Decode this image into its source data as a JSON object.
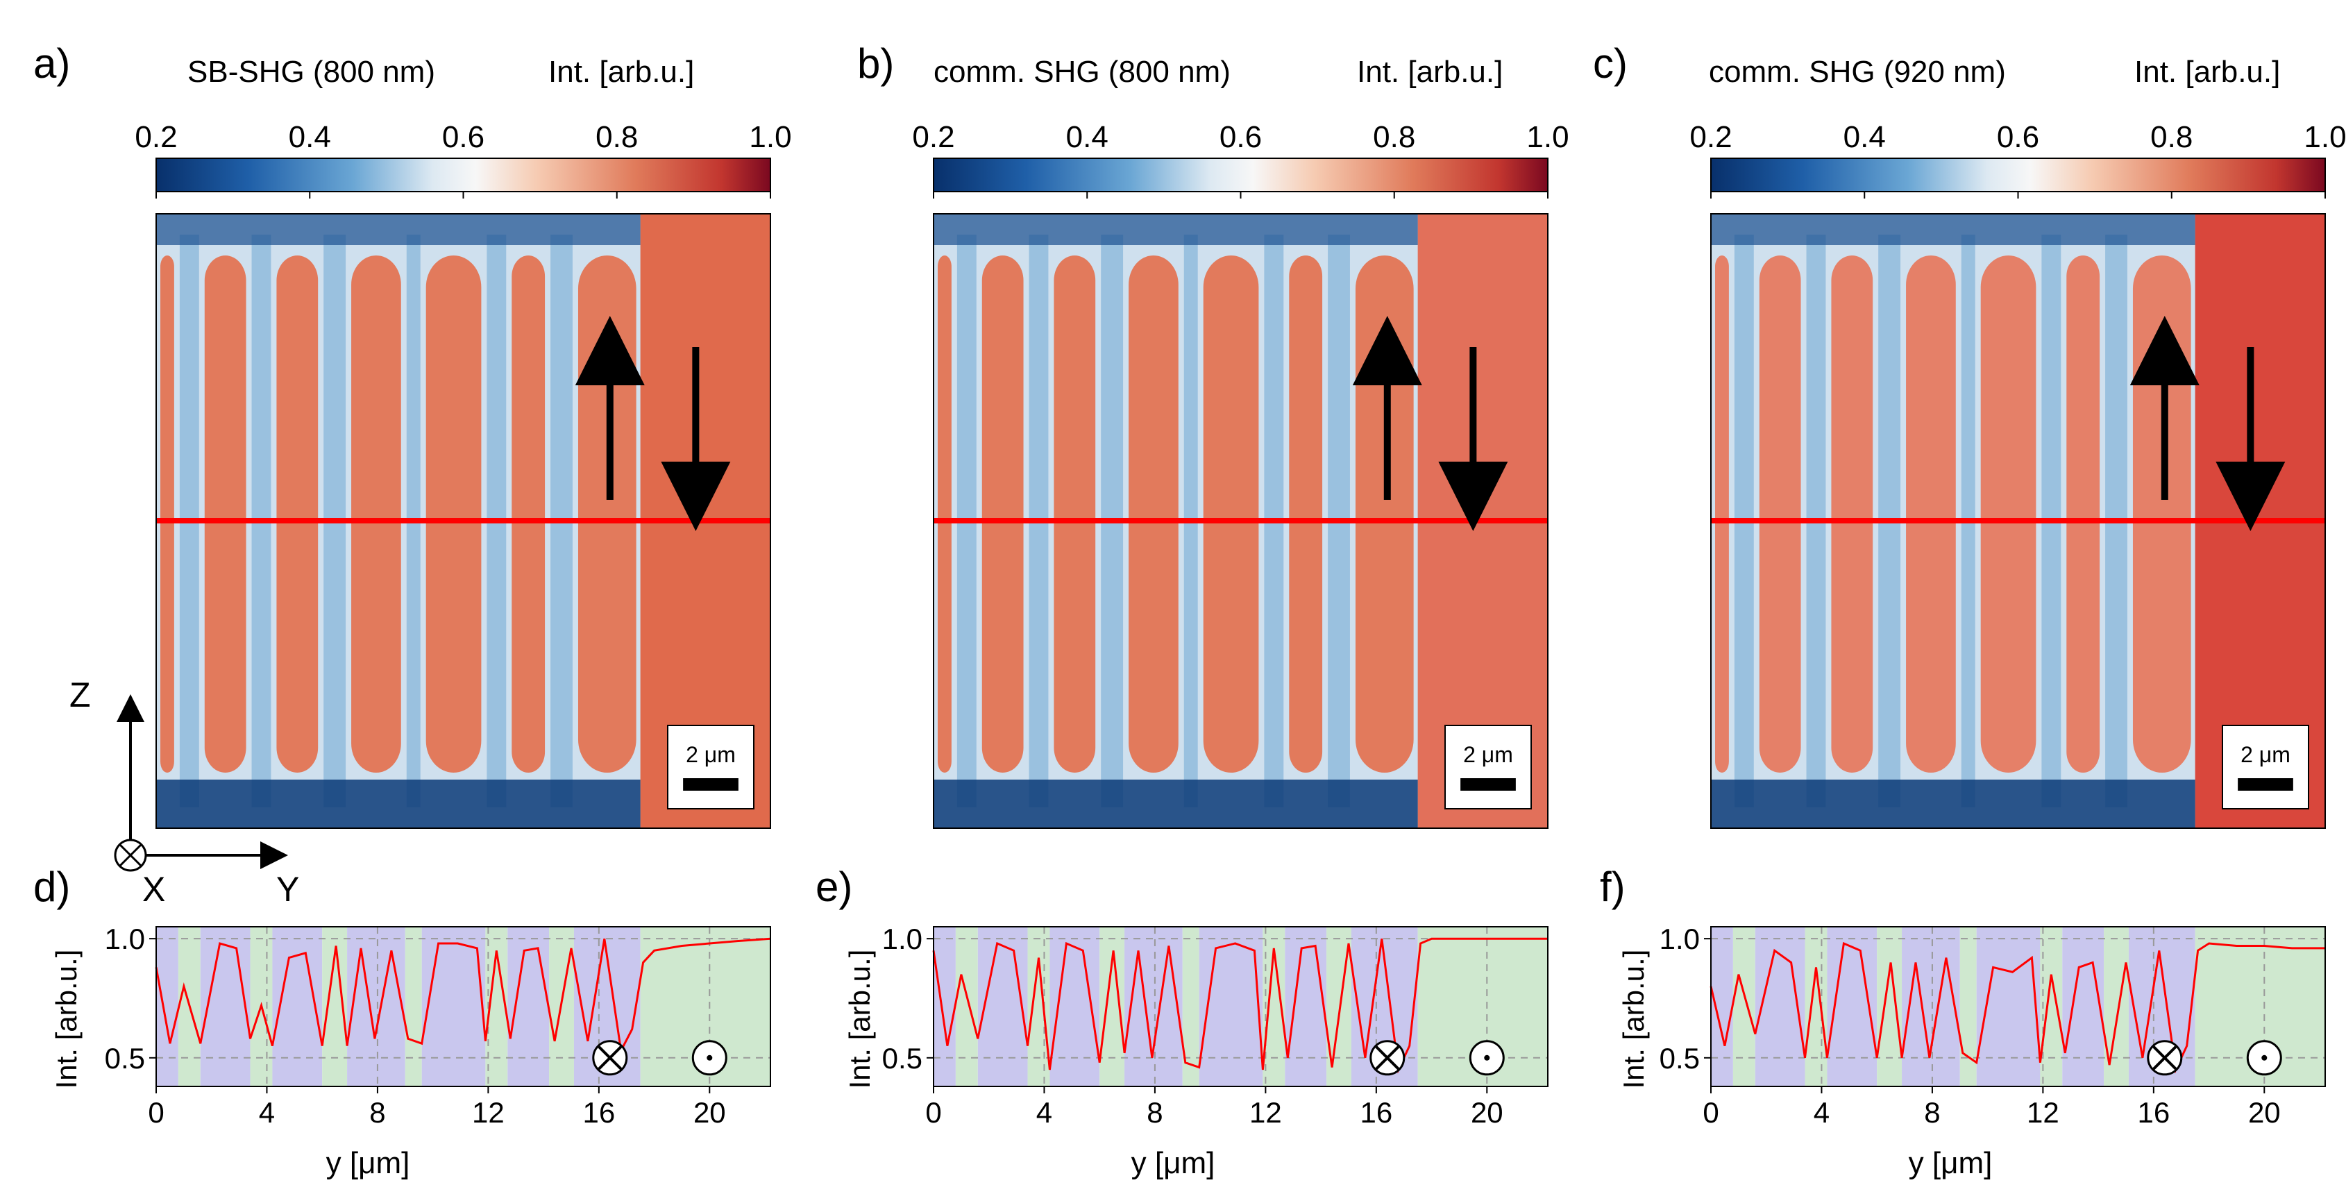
{
  "panels": [
    {
      "letter": "a)",
      "title": "SB-SHG (800 nm)",
      "cbar_label": "Int. [arb.u.]",
      "scalebar": "2 μm"
    },
    {
      "letter": "b)",
      "title": "comm. SHG (800 nm)",
      "cbar_label": "Int. [arb.u.]",
      "scalebar": "2 μm"
    },
    {
      "letter": "c)",
      "title": "comm. SHG (920 nm)",
      "cbar_label": "Int. [arb.u.]",
      "scalebar": "2 μm"
    }
  ],
  "profiles": [
    {
      "letter": "d)",
      "xlabel": "y [μm]",
      "ylabel": "Int. [arb.u.]"
    },
    {
      "letter": "e)",
      "xlabel": "y [μm]",
      "ylabel": "Int. [arb.u.]"
    },
    {
      "letter": "f)",
      "xlabel": "y [μm]",
      "ylabel": "Int. [arb.u.]"
    }
  ],
  "colorbar": {
    "ticks": [
      "0.2",
      "0.4",
      "0.6",
      "0.8",
      "1.0"
    ],
    "range": [
      0.2,
      1.0
    ]
  },
  "axes_indicator": {
    "z": "Z",
    "x": "X",
    "y": "Y"
  },
  "colors": {
    "cold": "#08306b",
    "neutral": "#f7f7f7",
    "warm": "#b2182b",
    "line": "#ff0000",
    "band_down": "#c9c7ee",
    "band_up": "#cfe8cf"
  },
  "chart_data": {
    "type": "line",
    "xlabel": "y [μm]",
    "ylabel": "Int. [arb.u.]",
    "xlim": [
      0,
      22.2
    ],
    "ylim": [
      0.38,
      1.05
    ],
    "xticks": [
      "0",
      "4",
      "8",
      "12",
      "16",
      "20"
    ],
    "yticks": [
      "0.5",
      "1.0"
    ],
    "grid": true,
    "domain_bands": [
      {
        "from": 0.0,
        "to": 0.8,
        "pol": "down"
      },
      {
        "from": 0.8,
        "to": 1.6,
        "pol": "up"
      },
      {
        "from": 1.6,
        "to": 3.4,
        "pol": "down"
      },
      {
        "from": 3.4,
        "to": 4.2,
        "pol": "up"
      },
      {
        "from": 4.2,
        "to": 6.0,
        "pol": "down"
      },
      {
        "from": 6.0,
        "to": 6.9,
        "pol": "up"
      },
      {
        "from": 6.9,
        "to": 9.0,
        "pol": "down"
      },
      {
        "from": 9.0,
        "to": 9.6,
        "pol": "up"
      },
      {
        "from": 9.6,
        "to": 11.9,
        "pol": "down"
      },
      {
        "from": 11.9,
        "to": 12.7,
        "pol": "up"
      },
      {
        "from": 12.7,
        "to": 14.2,
        "pol": "down"
      },
      {
        "from": 14.2,
        "to": 15.1,
        "pol": "up"
      },
      {
        "from": 15.1,
        "to": 17.5,
        "pol": "down"
      },
      {
        "from": 17.5,
        "to": 22.2,
        "pol": "up"
      }
    ],
    "series": [
      {
        "y": [
          0.0,
          0.5,
          1.0,
          1.6,
          2.3,
          2.9,
          3.4,
          3.8,
          4.2,
          4.8,
          5.4,
          6.0,
          6.5,
          6.9,
          7.4,
          7.9,
          8.5,
          9.1,
          9.6,
          10.2,
          10.9,
          11.6,
          11.9,
          12.3,
          12.8,
          13.3,
          13.8,
          14.4,
          15.0,
          15.6,
          16.2,
          16.8,
          17.2,
          17.6,
          18.0,
          19.0,
          20.0,
          21.0,
          22.2
        ],
        "intensity": [
          0.88,
          0.56,
          0.8,
          0.56,
          0.98,
          0.96,
          0.58,
          0.72,
          0.55,
          0.92,
          0.94,
          0.55,
          0.97,
          0.55,
          0.96,
          0.58,
          0.95,
          0.58,
          0.56,
          0.98,
          0.98,
          0.96,
          0.57,
          0.95,
          0.58,
          0.95,
          0.96,
          0.57,
          0.96,
          0.57,
          1.0,
          0.53,
          0.62,
          0.9,
          0.95,
          0.97,
          0.98,
          0.99,
          1.0
        ]
      },
      {
        "y": [
          0.0,
          0.5,
          1.0,
          1.6,
          2.3,
          2.9,
          3.4,
          3.8,
          4.2,
          4.8,
          5.4,
          6.0,
          6.5,
          6.9,
          7.4,
          7.9,
          8.5,
          9.1,
          9.6,
          10.2,
          10.9,
          11.6,
          11.9,
          12.3,
          12.8,
          13.3,
          13.8,
          14.4,
          15.0,
          15.6,
          16.2,
          16.8,
          17.2,
          17.6,
          18.0,
          19.0,
          20.0,
          21.0,
          22.2
        ],
        "intensity": [
          0.95,
          0.55,
          0.85,
          0.58,
          0.98,
          0.95,
          0.55,
          0.92,
          0.45,
          0.98,
          0.95,
          0.48,
          0.95,
          0.52,
          0.95,
          0.5,
          0.97,
          0.48,
          0.46,
          0.96,
          0.98,
          0.95,
          0.45,
          0.96,
          0.5,
          0.96,
          0.97,
          0.46,
          0.98,
          0.5,
          1.0,
          0.45,
          0.55,
          0.98,
          1.0,
          1.0,
          1.0,
          1.0,
          1.0
        ]
      },
      {
        "y": [
          0.0,
          0.5,
          1.0,
          1.6,
          2.3,
          2.9,
          3.4,
          3.8,
          4.2,
          4.8,
          5.4,
          6.0,
          6.5,
          6.9,
          7.4,
          7.9,
          8.5,
          9.1,
          9.6,
          10.2,
          10.9,
          11.6,
          11.9,
          12.3,
          12.8,
          13.3,
          13.8,
          14.4,
          15.0,
          15.6,
          16.2,
          16.8,
          17.2,
          17.6,
          18.0,
          19.0,
          20.0,
          21.0,
          22.2
        ],
        "intensity": [
          0.8,
          0.55,
          0.85,
          0.6,
          0.95,
          0.9,
          0.5,
          0.88,
          0.5,
          0.98,
          0.95,
          0.5,
          0.9,
          0.5,
          0.9,
          0.5,
          0.92,
          0.52,
          0.48,
          0.88,
          0.86,
          0.92,
          0.48,
          0.85,
          0.52,
          0.88,
          0.9,
          0.47,
          0.9,
          0.5,
          0.95,
          0.45,
          0.55,
          0.95,
          0.98,
          0.97,
          0.97,
          0.96,
          0.96
        ]
      }
    ]
  }
}
